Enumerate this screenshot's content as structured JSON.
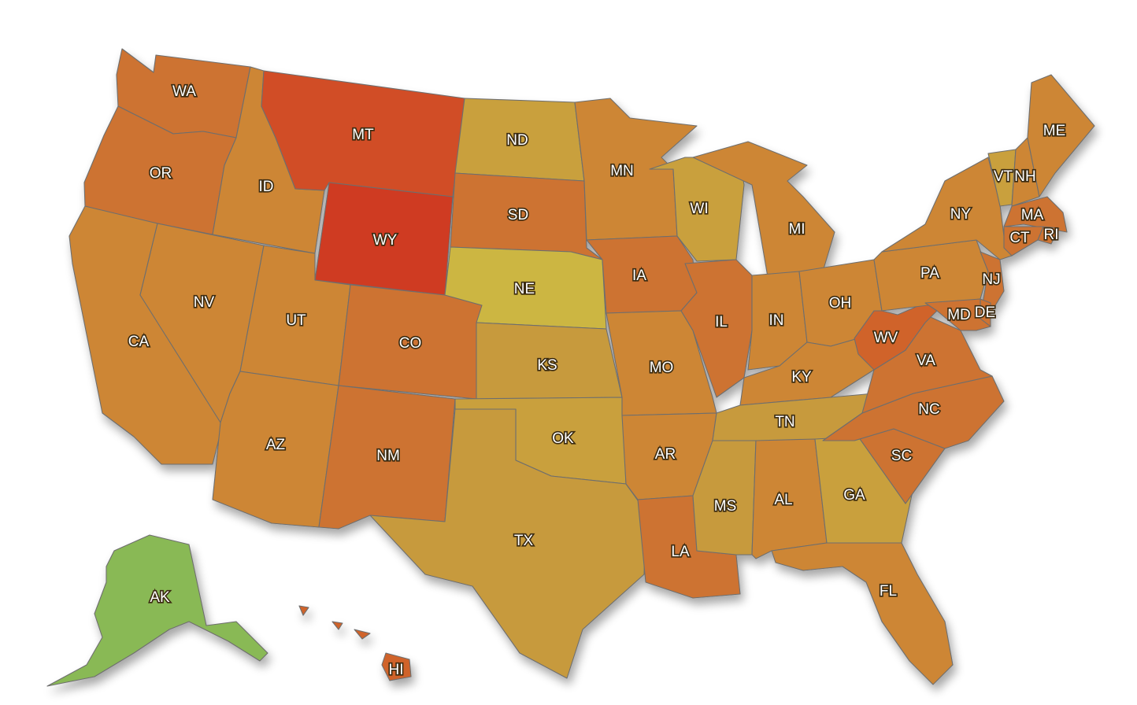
{
  "map": {
    "colors": {
      "green": "#89b955",
      "yellow": "#ccb642",
      "gold": "#c9a03c",
      "tan": "#c79a3e",
      "orange_light": "#cd8634",
      "orange": "#cd7330",
      "orange_dark": "#d0632c",
      "red_orange": "#d14e27",
      "red": "#cf3a22",
      "stroke": "#6e6e6e"
    },
    "states": [
      {
        "abbr": "WA",
        "color": "orange"
      },
      {
        "abbr": "OR",
        "color": "orange"
      },
      {
        "abbr": "CA",
        "color": "orange_light"
      },
      {
        "abbr": "ID",
        "color": "orange_light"
      },
      {
        "abbr": "NV",
        "color": "orange_light"
      },
      {
        "abbr": "MT",
        "color": "red_orange"
      },
      {
        "abbr": "WY",
        "color": "red"
      },
      {
        "abbr": "UT",
        "color": "orange_light"
      },
      {
        "abbr": "AZ",
        "color": "orange_light"
      },
      {
        "abbr": "CO",
        "color": "orange"
      },
      {
        "abbr": "NM",
        "color": "orange"
      },
      {
        "abbr": "ND",
        "color": "gold"
      },
      {
        "abbr": "SD",
        "color": "orange"
      },
      {
        "abbr": "NE",
        "color": "yellow"
      },
      {
        "abbr": "KS",
        "color": "tan"
      },
      {
        "abbr": "OK",
        "color": "gold"
      },
      {
        "abbr": "TX",
        "color": "tan"
      },
      {
        "abbr": "MN",
        "color": "orange_light"
      },
      {
        "abbr": "IA",
        "color": "orange"
      },
      {
        "abbr": "MO",
        "color": "orange_light"
      },
      {
        "abbr": "AR",
        "color": "orange_light"
      },
      {
        "abbr": "LA",
        "color": "orange"
      },
      {
        "abbr": "WI",
        "color": "gold"
      },
      {
        "abbr": "IL",
        "color": "orange"
      },
      {
        "abbr": "MI",
        "color": "orange_light"
      },
      {
        "abbr": "IN",
        "color": "orange_light"
      },
      {
        "abbr": "OH",
        "color": "orange_light"
      },
      {
        "abbr": "KY",
        "color": "orange_light"
      },
      {
        "abbr": "TN",
        "color": "tan"
      },
      {
        "abbr": "MS",
        "color": "tan"
      },
      {
        "abbr": "AL",
        "color": "orange_light"
      },
      {
        "abbr": "GA",
        "color": "gold"
      },
      {
        "abbr": "FL",
        "color": "orange_light"
      },
      {
        "abbr": "SC",
        "color": "orange"
      },
      {
        "abbr": "NC",
        "color": "orange"
      },
      {
        "abbr": "VA",
        "color": "orange"
      },
      {
        "abbr": "WV",
        "color": "orange_dark"
      },
      {
        "abbr": "PA",
        "color": "orange_light"
      },
      {
        "abbr": "NY",
        "color": "orange_light"
      },
      {
        "abbr": "VT",
        "color": "gold"
      },
      {
        "abbr": "NH",
        "color": "orange_light"
      },
      {
        "abbr": "ME",
        "color": "orange_light"
      },
      {
        "abbr": "MA",
        "color": "orange"
      },
      {
        "abbr": "RI",
        "color": "orange"
      },
      {
        "abbr": "CT",
        "color": "orange"
      },
      {
        "abbr": "NJ",
        "color": "orange"
      },
      {
        "abbr": "DE",
        "color": "orange"
      },
      {
        "abbr": "MD",
        "color": "orange"
      },
      {
        "abbr": "AK",
        "color": "green"
      },
      {
        "abbr": "HI",
        "color": "orange_dark"
      }
    ]
  }
}
